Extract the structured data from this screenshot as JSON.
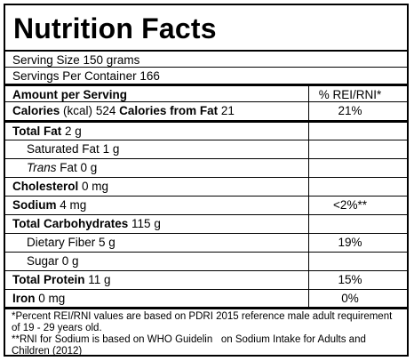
{
  "title": "Nutrition Facts",
  "serving_size": "Serving Size 150 grams",
  "servings_per_container": "Servings Per Container 166",
  "header": {
    "left": "Amount per Serving",
    "right": "% REI/RNI*"
  },
  "calories": {
    "label": "Calories",
    "unit": "(kcal)",
    "value": "524",
    "fat_label": "Calories from Fat",
    "fat_value": "21",
    "pct": "21%"
  },
  "rows": [
    {
      "label": "Total Fat",
      "value": "2 g",
      "pct": ""
    },
    {
      "label": "Saturated Fat",
      "value": "1 g",
      "pct": ""
    },
    {
      "label": "Trans",
      "suffix": " Fat",
      "value": "0 g",
      "pct": ""
    },
    {
      "label": "Cholesterol",
      "value": "0 mg",
      "pct": ""
    },
    {
      "label": "Sodium",
      "value": "4 mg",
      "pct": "<2%**"
    },
    {
      "label": "Total Carbohydrates",
      "value": "115 g",
      "pct": ""
    },
    {
      "label": "Dietary Fiber",
      "value": "5 g",
      "pct": "19%"
    },
    {
      "label": "Sugar",
      "value": "0 g",
      "pct": ""
    },
    {
      "label": "Total Protein",
      "value": "11 g",
      "pct": "15%"
    },
    {
      "label": "Iron",
      "value": "0 mg",
      "pct": "0%"
    }
  ],
  "footnotes": [
    "*Percent REI/RNI values are based on PDRI 2015 reference male adult requirement of 19 - 29 years old.",
    "**RNI for Sodium is based on WHO Guidelin   on Sodium Intake for Adults and Children (2012)"
  ]
}
